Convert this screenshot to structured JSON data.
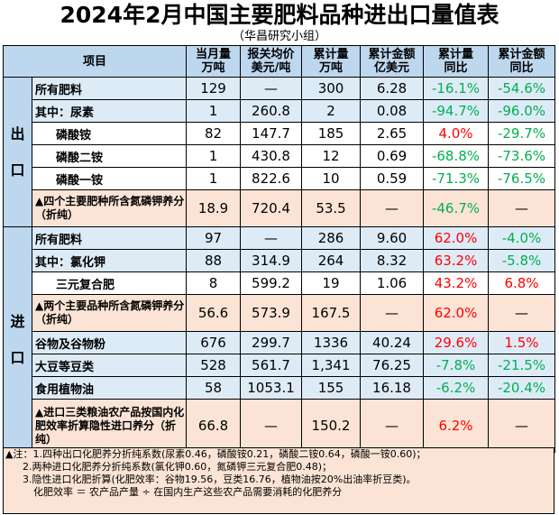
{
  "title": "2024年2月中国主要肥料品种进出口量值表",
  "subtitle": "（华昌研究小组）",
  "headers": {
    "item": "项目",
    "month_qty": [
      "当月量",
      "万吨"
    ],
    "price": [
      "报关均价",
      "美元/吨"
    ],
    "cum_qty": [
      "累计量",
      "万吨"
    ],
    "cum_amount": [
      "累计金额",
      "亿美元"
    ],
    "cum_yoy": [
      "累计量",
      "同比"
    ],
    "amount_yoy": [
      "累计金额",
      "同比"
    ]
  },
  "export_label": [
    "出",
    "口"
  ],
  "import_label": [
    "进",
    "口"
  ],
  "export_rows": [
    {
      "name": "所有肥料",
      "month": "129",
      "price": "—",
      "cum": "300",
      "amount": "6.28",
      "yoy": "-16.1%",
      "ayoy": "-54.6%"
    },
    {
      "name": "其中：尿素",
      "month": "1",
      "price": "260.8",
      "cum": "2",
      "amount": "0.08",
      "yoy": "-94.7%",
      "ayoy": "-96.0%"
    },
    {
      "name": "磷酸铵",
      "month": "82",
      "price": "147.7",
      "cum": "185",
      "amount": "2.65",
      "yoy": "4.0%",
      "ayoy": "-29.7%"
    },
    {
      "name": "磷酸二铵",
      "month": "1",
      "price": "430.8",
      "cum": "12",
      "amount": "0.69",
      "yoy": "-68.8%",
      "ayoy": "-73.6%"
    },
    {
      "name": "磷酸一铵",
      "month": "1",
      "price": "822.6",
      "cum": "10",
      "amount": "0.59",
      "yoy": "-71.3%",
      "ayoy": "-76.5%"
    },
    {
      "name": "▲四个主要肥种所含氮磷钾养分（折纯）",
      "month": "18.9",
      "price": "720.4",
      "cum": "53.5",
      "amount": "—",
      "yoy": "-46.7%",
      "ayoy": "—"
    }
  ],
  "import_rows": [
    {
      "name": "所有肥料",
      "month": "97",
      "price": "—",
      "cum": "286",
      "amount": "9.60",
      "yoy": "62.0%",
      "ayoy": "-4.0%"
    },
    {
      "name": "其中：氯化钾",
      "month": "88",
      "price": "314.9",
      "cum": "264",
      "amount": "8.32",
      "yoy": "63.2%",
      "ayoy": "-5.8%"
    },
    {
      "name": "三元复合肥",
      "month": "8",
      "price": "599.2",
      "cum": "19",
      "amount": "1.06",
      "yoy": "43.2%",
      "ayoy": "6.8%"
    },
    {
      "name": "▲两个主要品种所含氮磷钾养分（折纯）",
      "month": "56.6",
      "price": "573.9",
      "cum": "167.5",
      "amount": "—",
      "yoy": "62.0%",
      "ayoy": "—"
    },
    {
      "name": "谷物及谷物粉",
      "month": "676",
      "price": "299.7",
      "cum": "1336",
      "amount": "40.24",
      "yoy": "29.6%",
      "ayoy": "1.5%"
    },
    {
      "name": "大豆等豆类",
      "month": "528",
      "price": "561.7",
      "cum": "1,341",
      "amount": "76.25",
      "yoy": "-7.8%",
      "ayoy": "-21.5%"
    },
    {
      "name": "食用植物油",
      "month": "58",
      "price": "1053.1",
      "cum": "155",
      "amount": "16.18",
      "yoy": "-6.2%",
      "ayoy": "-20.4%"
    },
    {
      "name": "▲进口三类粮油农产品按国内化肥效率折算隐性进口养分（折纯）",
      "month": "66.8",
      "price": "—",
      "cum": "150.2",
      "amount": "—",
      "yoy": "6.2%",
      "ayoy": "—"
    }
  ],
  "notes": [
    "▲注：1.四种出口化肥养分折纯系数(尿素0.46，磷酸铵0.21，磷酸二铵0.64，磷酸一铵0.60)；",
    "2.两种进口化肥养分折纯系数(氯化钾0.60，氮磷钾三元复合肥0.48)；",
    "3.隐性进口化肥折算(化肥效率：谷物19.56，豆类16.76，植物油按20%出油率折豆类)。",
    "化肥效率 ＝ 农产品产量 ÷ 在国内生产这些农产品需要消耗的化肥养分"
  ],
  "colors": {
    "header_bg": "#bdd7ee",
    "blue_row": "#ddebf7",
    "orange_row": "#fbe4d5",
    "positive": "#ff0000",
    "negative": "#00b050"
  }
}
